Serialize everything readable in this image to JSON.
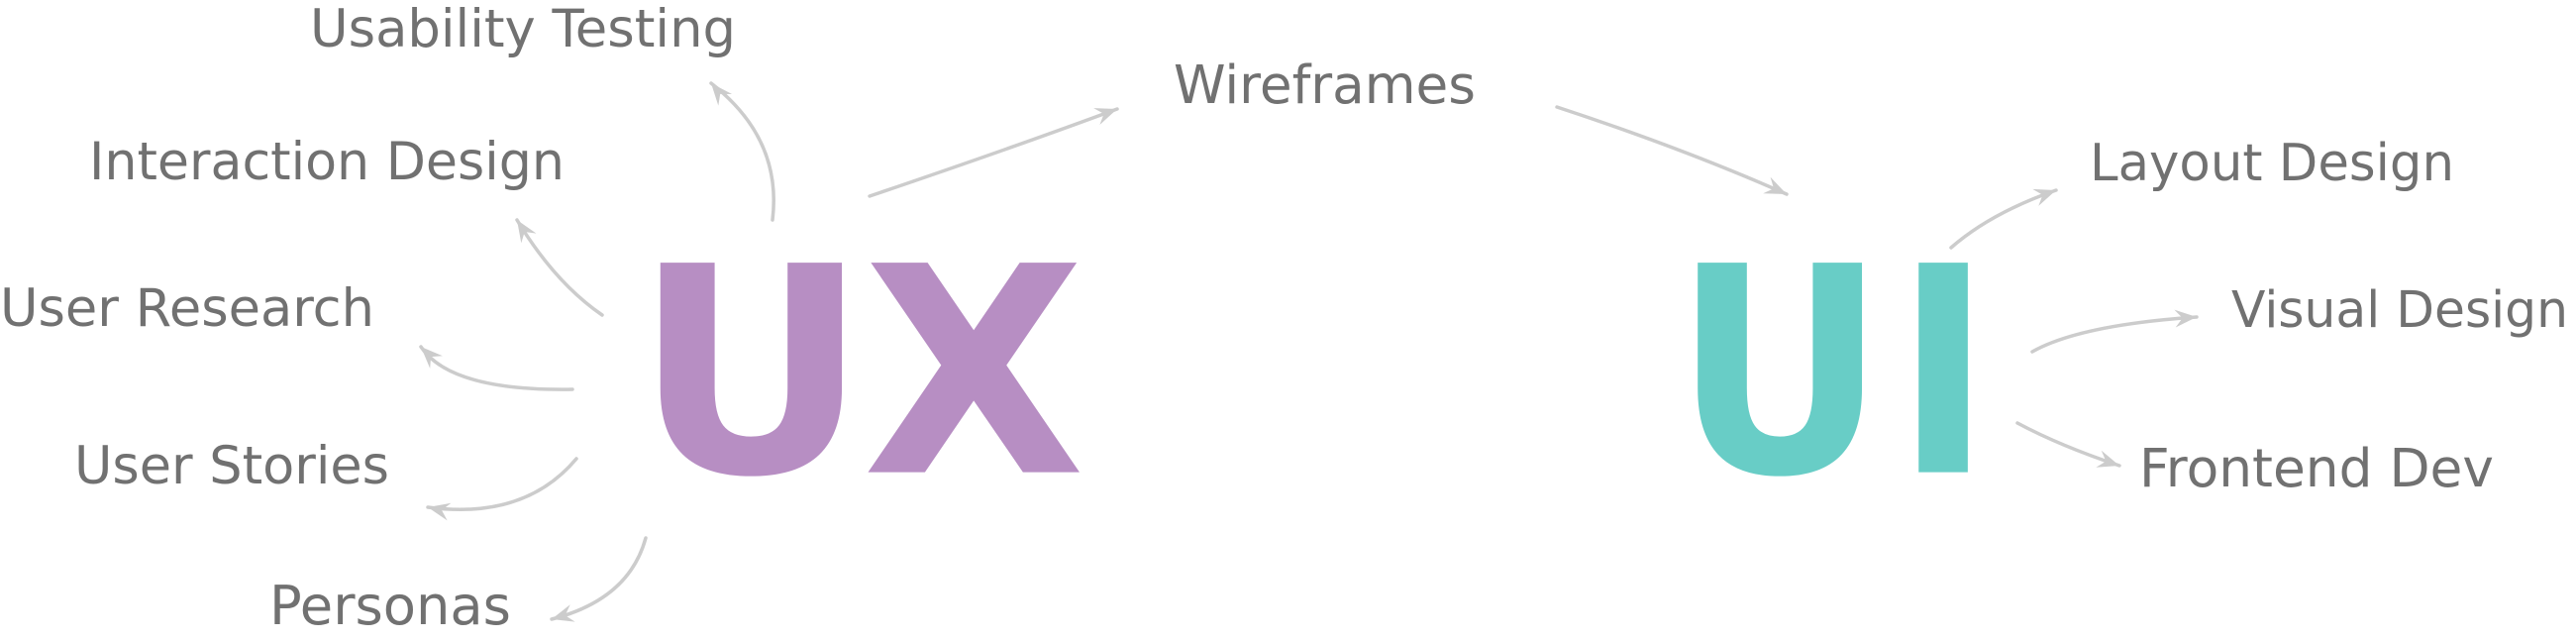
{
  "colors": {
    "ux": "#b78ec3",
    "ui": "#68cdc6",
    "label": "#717171",
    "arrow": "#cccccc"
  },
  "ux": {
    "text": "UX"
  },
  "ui": {
    "text": "UI"
  },
  "ux_topics": [
    "Usability Testing",
    "Interaction Design",
    "User Research",
    "User Stories",
    "Personas"
  ],
  "shared": {
    "bridge": "Wireframes"
  },
  "ui_topics": [
    "Layout Design",
    "Visual Design",
    "Frontend Dev"
  ]
}
